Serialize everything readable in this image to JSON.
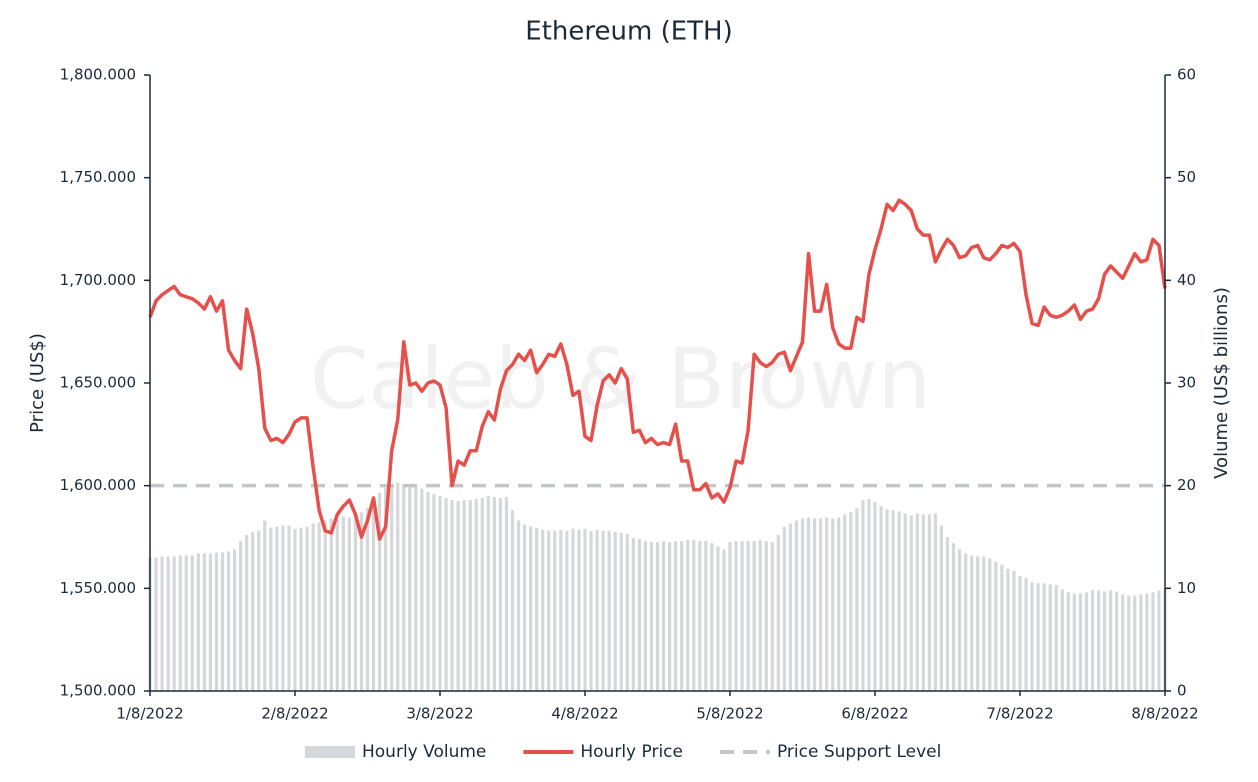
{
  "chart_data": {
    "type": "bar-line",
    "title": "Ethereum (ETH)",
    "watermark": "Caleb & Brown",
    "ylabel": "Price (US$)",
    "y2label": "Volume (US$ billions)",
    "categories": [
      "1/8/2022",
      null,
      null,
      null,
      null,
      null,
      null,
      null,
      null,
      null,
      null,
      null,
      null,
      null,
      null,
      null,
      null,
      null,
      null,
      null,
      null,
      null,
      null,
      null,
      "2/8/2022",
      null,
      null,
      null,
      null,
      null,
      null,
      null,
      null,
      null,
      null,
      null,
      null,
      null,
      null,
      null,
      null,
      null,
      null,
      null,
      null,
      null,
      null,
      null,
      "3/8/2022",
      null,
      null,
      null,
      null,
      null,
      null,
      null,
      null,
      null,
      null,
      null,
      null,
      null,
      null,
      null,
      null,
      null,
      null,
      null,
      null,
      null,
      null,
      null,
      "4/8/2022",
      null,
      null,
      null,
      null,
      null,
      null,
      null,
      null,
      null,
      null,
      null,
      null,
      null,
      null,
      null,
      null,
      null,
      null,
      null,
      null,
      null,
      null,
      null,
      "5/8/2022",
      null,
      null,
      null,
      null,
      null,
      null,
      null,
      null,
      null,
      null,
      null,
      null,
      null,
      null,
      null,
      null,
      null,
      null,
      null,
      null,
      null,
      null,
      null,
      "6/8/2022",
      null,
      null,
      null,
      null,
      null,
      null,
      null,
      null,
      null,
      null,
      null,
      null,
      null,
      null,
      null,
      null,
      null,
      null,
      null,
      null,
      null,
      null,
      null,
      "7/8/2022",
      null,
      null,
      null,
      null,
      null,
      null,
      null,
      null,
      null,
      null,
      null,
      null,
      null,
      null,
      null,
      null,
      null,
      null,
      null,
      null,
      null,
      null,
      null,
      "8/8/2022"
    ],
    "series": [
      {
        "name": "Hourly Volume",
        "type": "bar",
        "axis": "y2",
        "color": "#d5d7da",
        "values": [
          13.0,
          13.0,
          13.1,
          13.1,
          13.1,
          13.2,
          13.2,
          13.2,
          13.4,
          13.4,
          13.4,
          13.5,
          13.5,
          13.6,
          13.8,
          14.6,
          15.2,
          15.5,
          15.6,
          16.6,
          15.9,
          16.0,
          16.1,
          16.1,
          15.8,
          15.9,
          16.0,
          16.3,
          16.4,
          16.6,
          16.8,
          16.7,
          17.0,
          16.9,
          17.2,
          17.4,
          17.8,
          18.6,
          19.3,
          19.8,
          20.2,
          20.3,
          20.1,
          20.0,
          19.9,
          19.7,
          19.4,
          19.2,
          19.0,
          18.8,
          18.6,
          18.5,
          18.6,
          18.6,
          18.7,
          18.8,
          19.0,
          18.9,
          18.8,
          18.9,
          17.6,
          16.6,
          16.2,
          16.0,
          15.9,
          15.7,
          15.6,
          15.6,
          15.7,
          15.6,
          15.8,
          15.7,
          15.8,
          15.6,
          15.7,
          15.6,
          15.6,
          15.5,
          15.4,
          15.3,
          14.9,
          14.8,
          14.6,
          14.5,
          14.5,
          14.6,
          14.5,
          14.6,
          14.6,
          14.7,
          14.7,
          14.6,
          14.6,
          14.4,
          14.1,
          13.8,
          14.5,
          14.6,
          14.6,
          14.6,
          14.6,
          14.7,
          14.6,
          14.5,
          15.2,
          16.0,
          16.3,
          16.6,
          16.8,
          16.9,
          16.8,
          16.8,
          16.9,
          16.8,
          16.9,
          17.2,
          17.4,
          17.8,
          18.6,
          18.7,
          18.4,
          18.0,
          17.7,
          17.6,
          17.5,
          17.3,
          17.1,
          17.3,
          17.2,
          17.2,
          17.3,
          16.1,
          15.0,
          14.4,
          13.8,
          13.4,
          13.2,
          13.1,
          13.1,
          12.9,
          12.6,
          12.3,
          11.9,
          11.7,
          11.2,
          11.0,
          10.6,
          10.5,
          10.5,
          10.4,
          10.3,
          9.9,
          9.6,
          9.5,
          9.5,
          9.6,
          9.8,
          9.8,
          9.7,
          9.8,
          9.7,
          9.4,
          9.3,
          9.3,
          9.4,
          9.5,
          9.6,
          9.8,
          9.9
        ]
      },
      {
        "name": "Hourly Price",
        "type": "line",
        "axis": "y",
        "color": "#e5504a",
        "values": [
          1682,
          1690,
          1693,
          1695,
          1697,
          1693,
          1692,
          1691,
          1689,
          1686,
          1692,
          1685,
          1690,
          1666,
          1661,
          1657,
          1686,
          1674,
          1657,
          1628,
          1622,
          1623,
          1621,
          1625,
          1631,
          1633,
          1633,
          1609,
          1588,
          1578,
          1577,
          1586,
          1590,
          1593,
          1586,
          1575,
          1583,
          1594,
          1574,
          1580,
          1617,
          1632,
          1670,
          1649,
          1650,
          1646,
          1650,
          1651,
          1649,
          1638,
          1600,
          1612,
          1610,
          1617,
          1617,
          1629,
          1636,
          1632,
          1647,
          1656,
          1659,
          1664,
          1661,
          1666,
          1655,
          1659,
          1664,
          1663,
          1669,
          1659,
          1644,
          1646,
          1624,
          1622,
          1639,
          1651,
          1654,
          1650,
          1657,
          1652,
          1626,
          1627,
          1621,
          1623,
          1620,
          1621,
          1620,
          1630,
          1612,
          1612,
          1598,
          1598,
          1601,
          1594,
          1596,
          1592,
          1599,
          1612,
          1611,
          1627,
          1664,
          1660,
          1658,
          1660,
          1664,
          1665,
          1656,
          1663,
          1670,
          1713,
          1685,
          1685,
          1698,
          1677,
          1669,
          1667,
          1667,
          1682,
          1680,
          1703,
          1715,
          1725,
          1737,
          1734,
          1739,
          1737,
          1734,
          1725,
          1722,
          1722,
          1709,
          1715,
          1720,
          1717,
          1711,
          1712,
          1716,
          1717,
          1711,
          1710,
          1713,
          1717,
          1716,
          1718,
          1714,
          1693,
          1679,
          1678,
          1687,
          1683,
          1682,
          1683,
          1685,
          1688,
          1681,
          1685,
          1686,
          1691,
          1703,
          1707,
          1704,
          1701,
          1707,
          1713,
          1709,
          1710,
          1720,
          1717,
          1696
        ]
      }
    ],
    "support_level": {
      "name": "Price Support Level",
      "value": 1600,
      "color": "#c3c6ca"
    },
    "ylim": [
      1500,
      1800
    ],
    "yticks": [
      {
        "value": 1500,
        "label": "1,500.000"
      },
      {
        "value": 1550,
        "label": "1,550.000"
      },
      {
        "value": 1600,
        "label": "1,600.000"
      },
      {
        "value": 1650,
        "label": "1,650.000"
      },
      {
        "value": 1700,
        "label": "1,700.000"
      },
      {
        "value": 1750,
        "label": "1,750.000"
      },
      {
        "value": 1800,
        "label": "1,800.000"
      }
    ],
    "y2lim": [
      0,
      60
    ],
    "y2ticks": [
      0,
      10,
      20,
      30,
      40,
      50,
      60
    ],
    "grid": false,
    "legend": "bottom"
  }
}
